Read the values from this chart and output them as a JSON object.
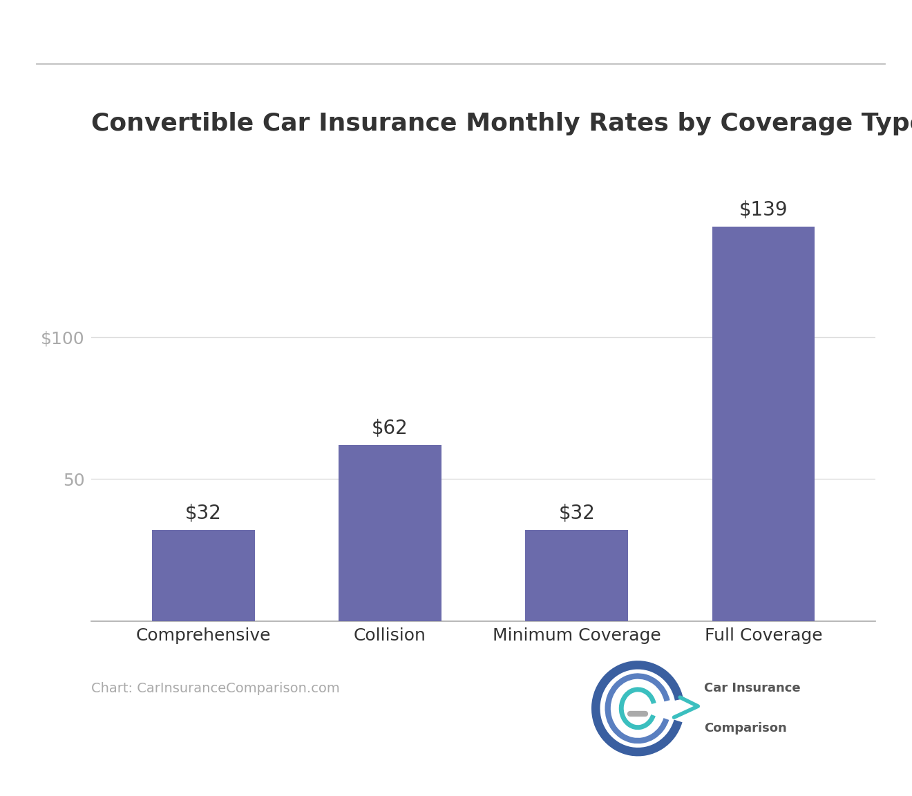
{
  "title": "Convertible Car Insurance Monthly Rates by Coverage Type",
  "categories": [
    "Comprehensive",
    "Collision",
    "Minimum Coverage",
    "Full Coverage"
  ],
  "values": [
    32,
    62,
    32,
    139
  ],
  "bar_color": "#6b6bab",
  "background_color": "#ffffff",
  "title_color": "#333333",
  "tick_label_color": "#aaaaaa",
  "ytick_labels": [
    "50",
    "$100"
  ],
  "ytick_values": [
    50,
    100
  ],
  "ylim": [
    0,
    160
  ],
  "grid_color": "#dddddd",
  "value_label_prefix": "$",
  "source_text": "Chart: CarInsuranceComparison.com",
  "source_color": "#aaaaaa",
  "title_fontsize": 26,
  "bar_label_fontsize": 20,
  "tick_fontsize": 18,
  "xtick_fontsize": 18,
  "source_fontsize": 14,
  "top_line_color": "#cccccc",
  "figsize": [
    13.2,
    11.52
  ],
  "dpi": 100,
  "bar_width": 0.55,
  "logo_text1": "Car Insurance",
  "logo_text2": "Comparison",
  "logo_color1": "#3a5fa0",
  "logo_color2": "#3bbfbf",
  "logo_text_color": "#555555"
}
